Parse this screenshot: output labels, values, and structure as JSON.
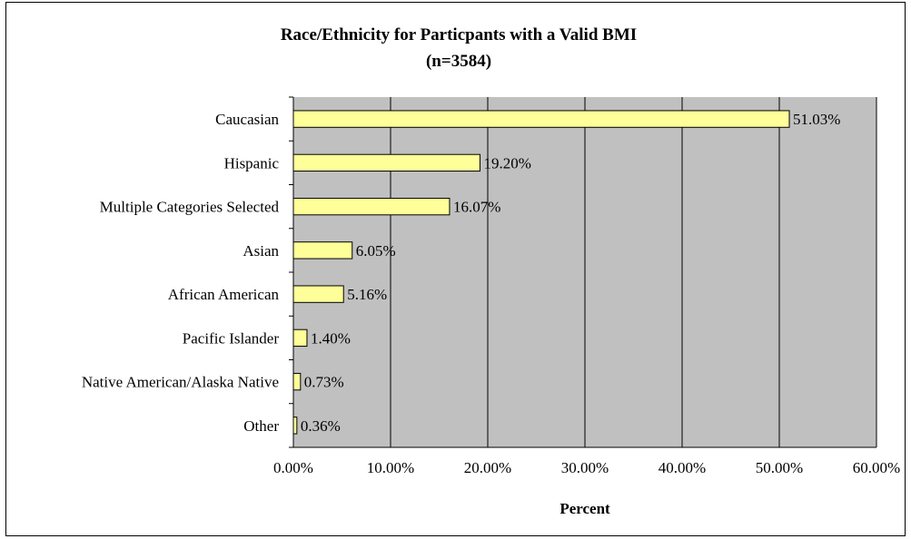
{
  "chart_data": {
    "type": "bar",
    "orientation": "horizontal",
    "title": "Race/Ethnicity for Particpants with a Valid BMI",
    "subtitle": "(n=3584)",
    "xlabel": "Percent",
    "ylabel": "",
    "categories": [
      "Caucasian",
      "Hispanic",
      "Multiple Categories Selected",
      "Asian",
      "African American",
      "Pacific Islander",
      "Native American/Alaska Native",
      "Other"
    ],
    "values": [
      51.03,
      19.2,
      16.07,
      6.05,
      5.16,
      1.4,
      0.73,
      0.36
    ],
    "data_labels": [
      "51.03%",
      "19.20%",
      "16.07%",
      "6.05%",
      "5.16%",
      "1.40%",
      "0.73%",
      "0.36%"
    ],
    "xlim": [
      0,
      60
    ],
    "xticks": [
      0,
      10,
      20,
      30,
      40,
      50,
      60
    ],
    "xtick_labels": [
      "0.00%",
      "10.00%",
      "20.00%",
      "30.00%",
      "40.00%",
      "50.00%",
      "60.00%"
    ],
    "grid": true,
    "legend": "none",
    "colors": {
      "plot_background": "#c0c0c0",
      "bar_fill": "#ffff99",
      "bar_stroke": "#000000",
      "gridline": "#000000"
    }
  }
}
